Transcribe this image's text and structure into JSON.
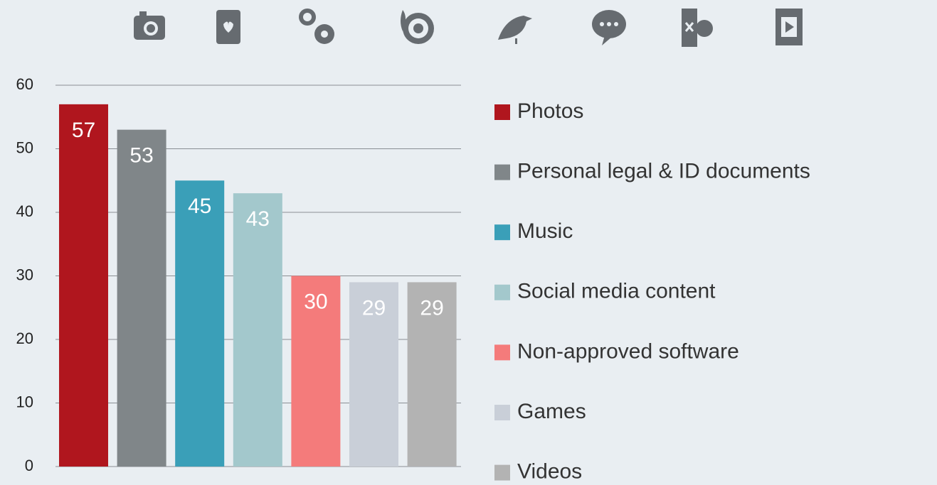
{
  "chart_data": {
    "type": "bar",
    "categories": [
      "Photos",
      "Personal legal & ID documents",
      "Music",
      "Social media content",
      "Non-approved software",
      "Games",
      "Videos"
    ],
    "values": [
      57,
      53,
      45,
      43,
      30,
      29,
      29
    ],
    "colors": [
      "#b0161e",
      "#808689",
      "#3a9fb8",
      "#a3c8cc",
      "#f47b7b",
      "#c9cfd8",
      "#b3b3b3"
    ],
    "ylim": [
      0,
      60
    ],
    "yticks": [
      0,
      10,
      20,
      30,
      40,
      50,
      60
    ],
    "grid": true,
    "legend": "right"
  }
}
